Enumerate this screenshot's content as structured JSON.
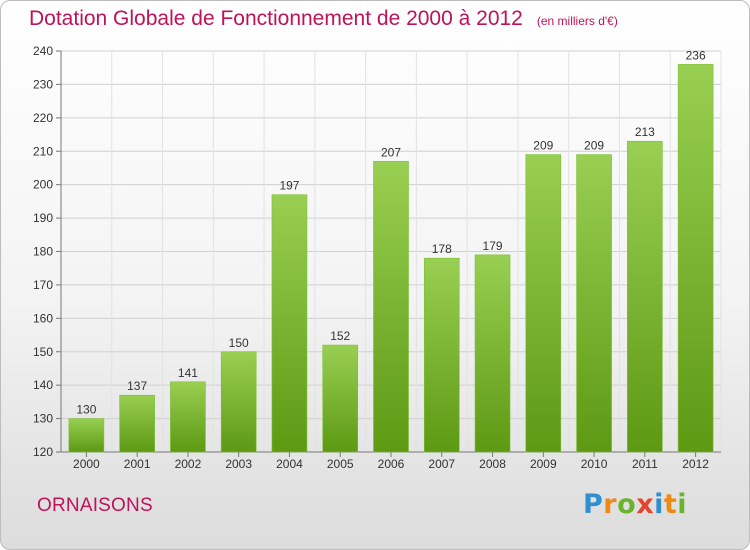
{
  "header": {
    "title": "Dotation Globale de Fonctionnement de 2000 à 2012",
    "unit": "(en milliers d'€)"
  },
  "footer": {
    "commune": "ORNAISONS",
    "brand": "Proxiti"
  },
  "colors": {
    "title": "#c0125a",
    "bar_top": "#99cf52",
    "bar_bottom": "#5d9913"
  },
  "chart_data": {
    "type": "bar",
    "title": "Dotation Globale de Fonctionnement de 2000 à 2012",
    "subtitle": "(en milliers d'€)",
    "categories": [
      "2000",
      "2001",
      "2002",
      "2003",
      "2004",
      "2005",
      "2006",
      "2007",
      "2008",
      "2009",
      "2010",
      "2011",
      "2012"
    ],
    "values": [
      130,
      137,
      141,
      150,
      197,
      152,
      207,
      178,
      179,
      209,
      209,
      213,
      236
    ],
    "ylim": [
      120,
      240
    ],
    "yticks": [
      120,
      130,
      140,
      150,
      160,
      170,
      180,
      190,
      200,
      210,
      220,
      230,
      240
    ],
    "grid": true,
    "data_labels": true
  }
}
